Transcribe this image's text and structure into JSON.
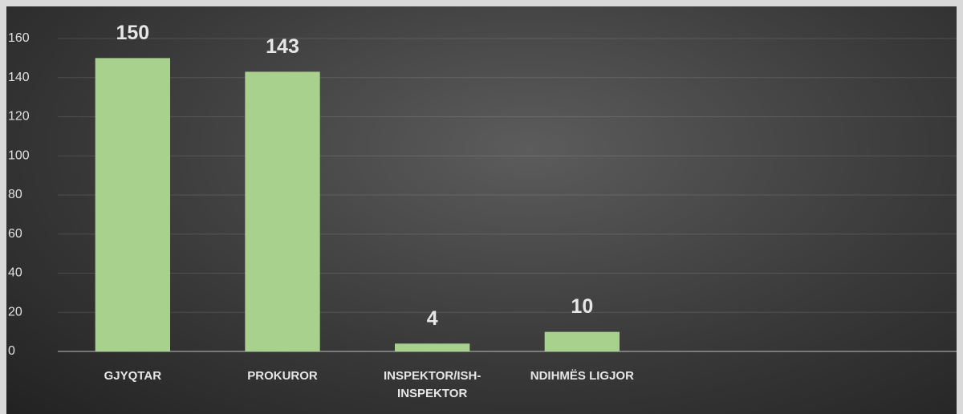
{
  "chart_data": {
    "type": "bar",
    "categories": [
      "GJYQTAR",
      "PROKUROR",
      "INSPEKTOR/ISH-INSPEKTOR",
      "NDIHMËS LIGJOR",
      null,
      null
    ],
    "values": [
      150,
      143,
      4,
      10,
      null,
      null
    ],
    "color": "#a9d18e",
    "ylim": [
      0,
      160
    ],
    "yticks": [
      0,
      20,
      40,
      60,
      80,
      100,
      120,
      140,
      160
    ],
    "grid": true
  }
}
